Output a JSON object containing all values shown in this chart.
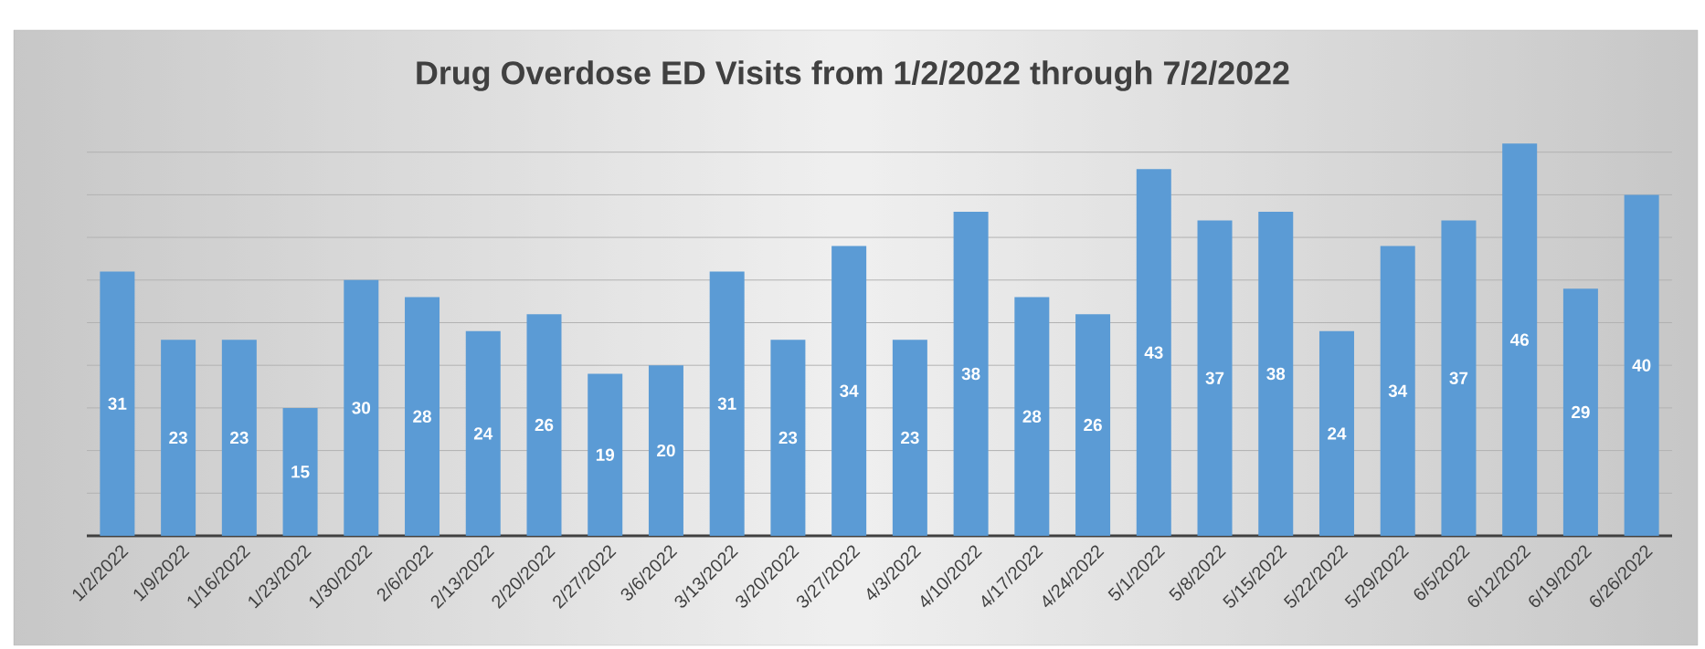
{
  "chart_data": {
    "type": "bar",
    "title": "Drug Overdose ED Visits from 1/2/2022 through 7/2/2022",
    "categories": [
      "1/2/2022",
      "1/9/2022",
      "1/16/2022",
      "1/23/2022",
      "1/30/2022",
      "2/6/2022",
      "2/13/2022",
      "2/20/2022",
      "2/27/2022",
      "3/6/2022",
      "3/13/2022",
      "3/20/2022",
      "3/27/2022",
      "4/3/2022",
      "4/10/2022",
      "4/17/2022",
      "4/24/2022",
      "5/1/2022",
      "5/8/2022",
      "5/15/2022",
      "5/22/2022",
      "5/29/2022",
      "6/5/2022",
      "6/12/2022",
      "6/19/2022",
      "6/26/2022"
    ],
    "values": [
      31,
      23,
      23,
      15,
      30,
      28,
      24,
      26,
      19,
      20,
      31,
      23,
      34,
      23,
      38,
      28,
      26,
      43,
      37,
      38,
      24,
      34,
      37,
      46,
      29,
      40
    ],
    "color": "#5b9bd5",
    "tick_labels": "x",
    "grid": "y",
    "data_labels": true
  }
}
